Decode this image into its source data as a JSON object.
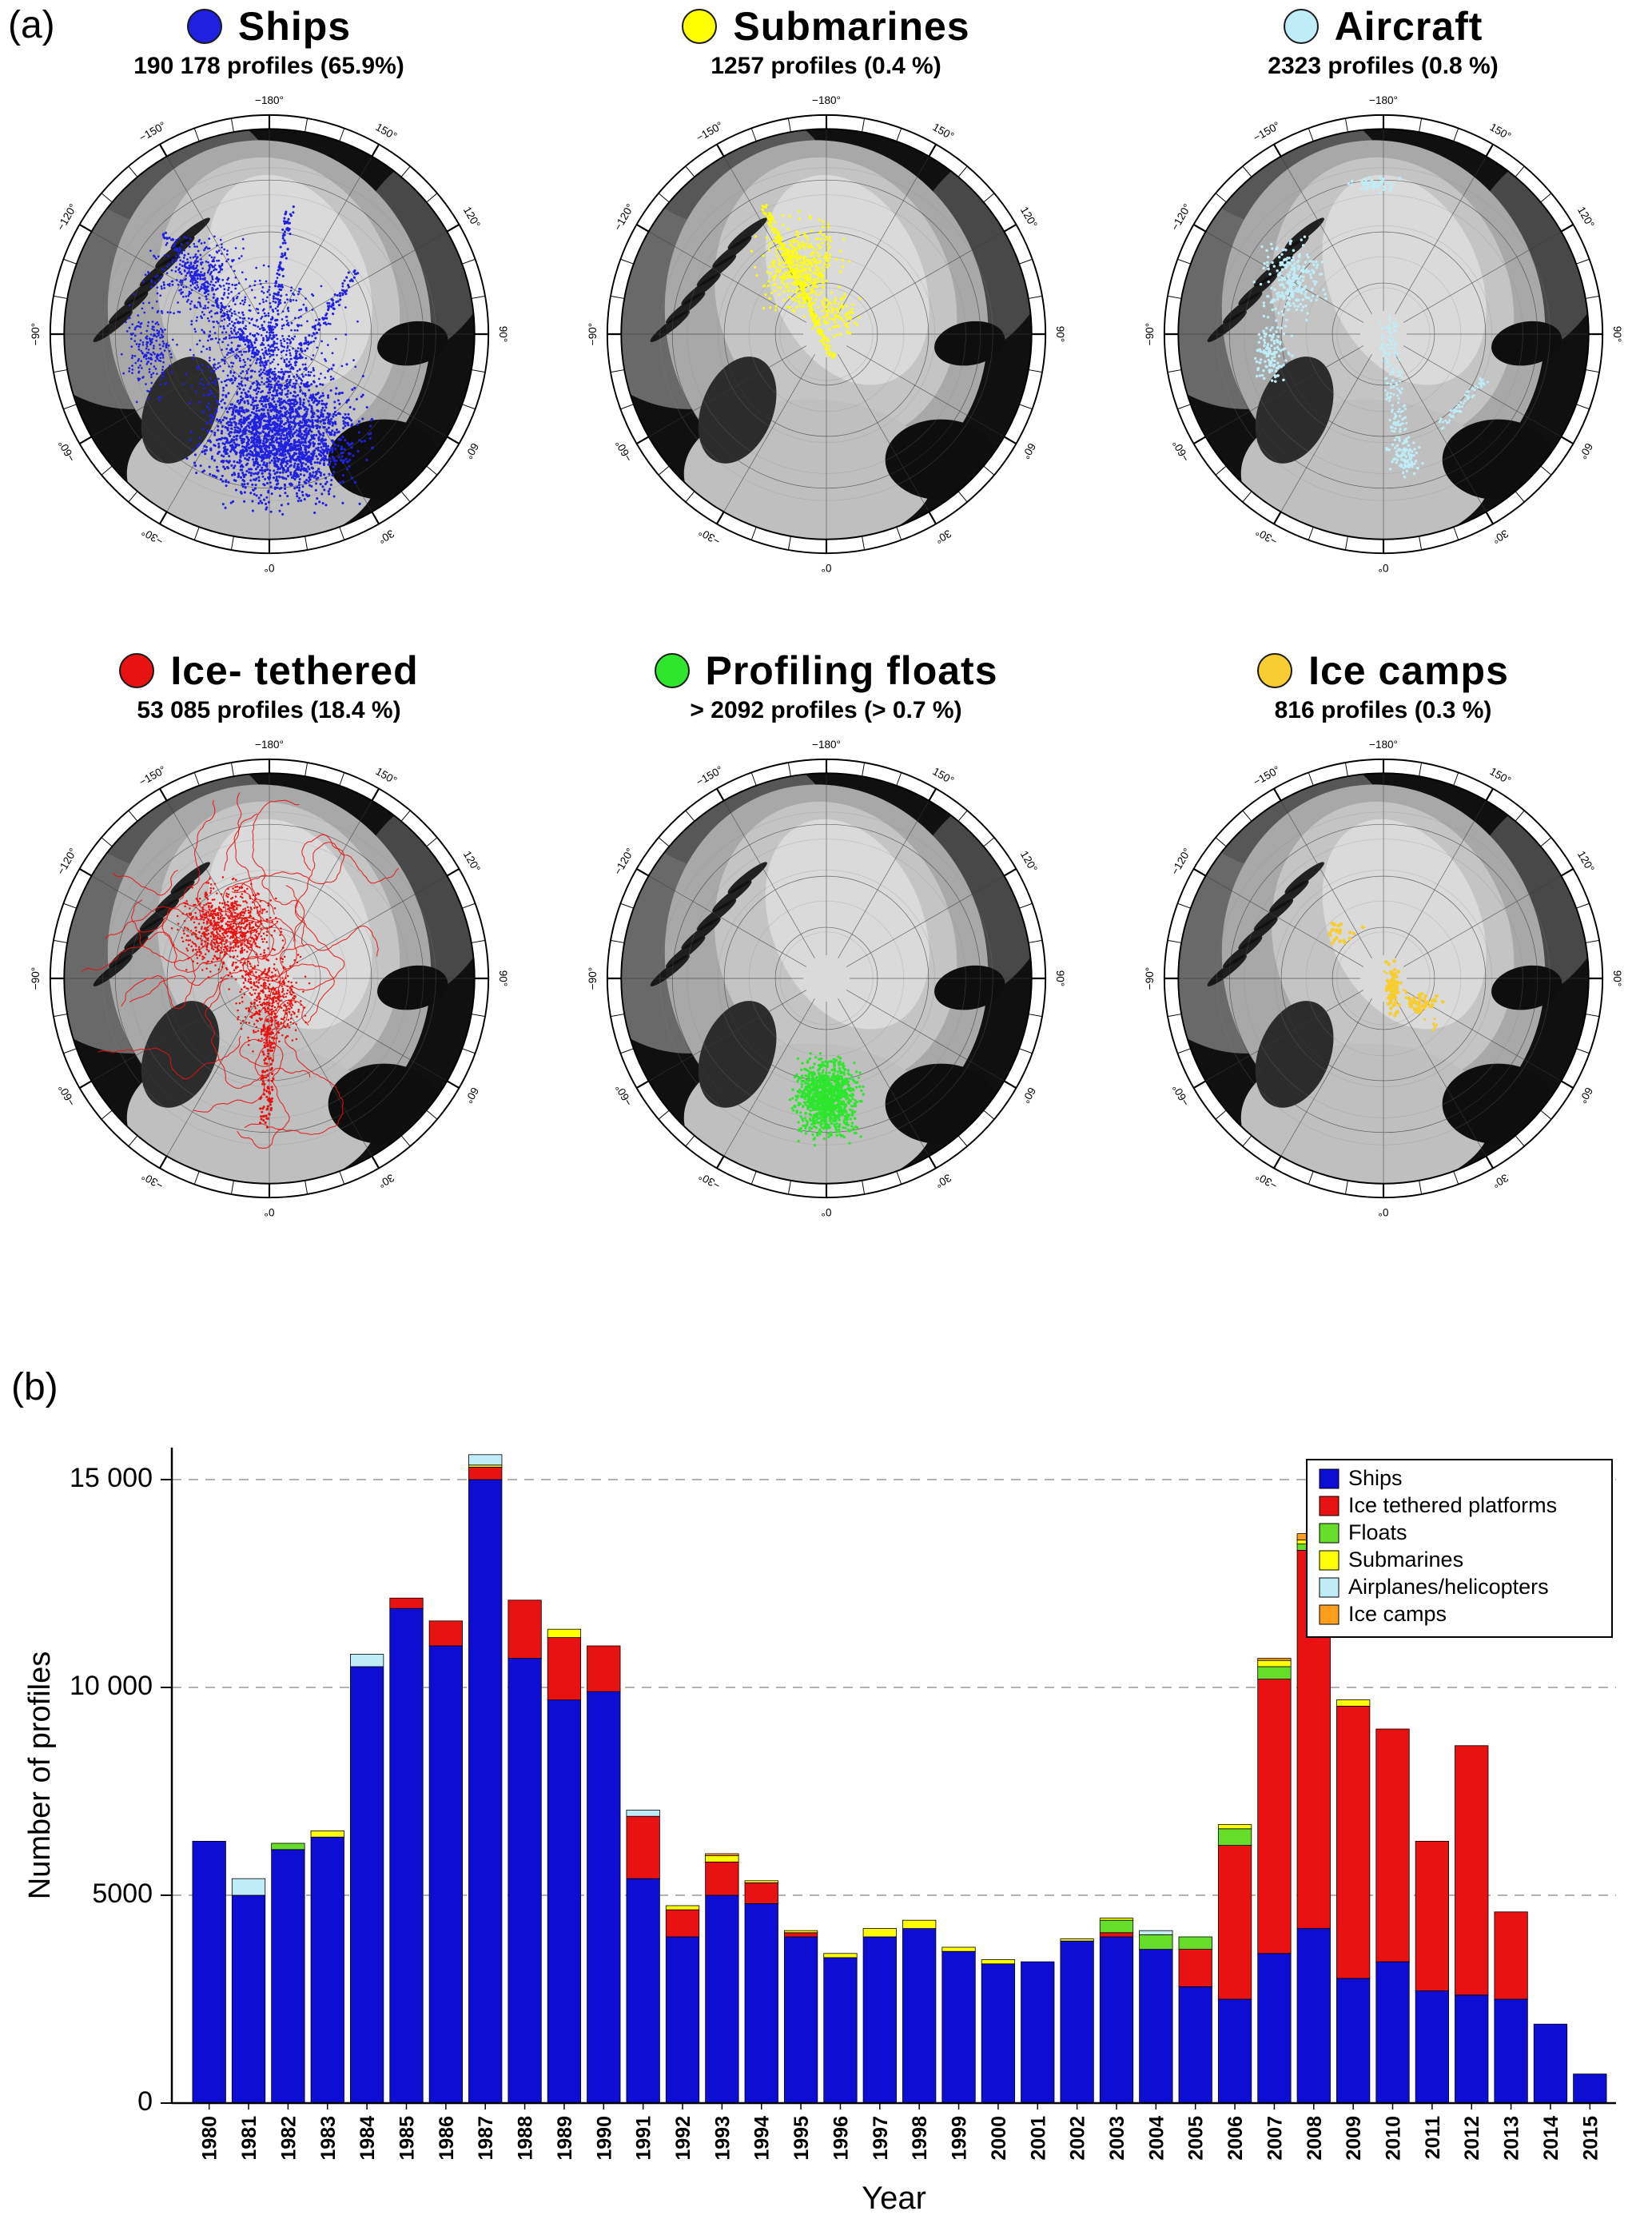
{
  "figure": {
    "panel_a_label": "(a)",
    "panel_b_label": "(b)"
  },
  "panel_a": {
    "ring_labels": [
      "−180°",
      "150°",
      "120°",
      "90°",
      "60°",
      "30°",
      "0°",
      "−30°",
      "−60°",
      "−90°",
      "−120°",
      "−150°"
    ],
    "maps": [
      {
        "id": "ships",
        "title": "Ships",
        "subtitle": "190 178 profiles (65.9%)",
        "color": "#2020e0",
        "scatter": [
          {
            "t": "b",
            "x": 0.05,
            "y": 0.5,
            "rx": 0.52,
            "ry": 0.42,
            "n": 2000,
            "s": 1.6
          },
          {
            "t": "b",
            "x": -0.05,
            "y": 0.05,
            "rx": 0.55,
            "ry": 0.45,
            "n": 700,
            "s": 1.4
          },
          {
            "t": "b",
            "x": -0.35,
            "y": -0.3,
            "rx": 0.3,
            "ry": 0.25,
            "n": 330,
            "s": 1.4
          },
          {
            "t": "b",
            "x": -0.58,
            "y": 0.08,
            "rx": 0.16,
            "ry": 0.3,
            "n": 200,
            "s": 1.4
          },
          {
            "t": "l",
            "x1": 0.0,
            "y1": 0.1,
            "x2": 0.1,
            "y2": -0.62,
            "n": 120,
            "w": 0.02
          },
          {
            "t": "l",
            "x1": 0.05,
            "y1": 0.25,
            "x2": -0.5,
            "y2": -0.48,
            "n": 150,
            "w": 0.02
          },
          {
            "t": "l",
            "x1": 0.0,
            "y1": 0.3,
            "x2": 0.42,
            "y2": -0.3,
            "n": 120,
            "w": 0.02
          }
        ]
      },
      {
        "id": "submarines",
        "title": "Submarines",
        "subtitle": "1257 profiles (0.4 %)",
        "color": "#ffff00",
        "scatter": [
          {
            "t": "b",
            "x": -0.12,
            "y": -0.32,
            "rx": 0.27,
            "ry": 0.3,
            "n": 420,
            "s": 1.6
          },
          {
            "t": "l",
            "x1": -0.3,
            "y1": -0.62,
            "x2": 0.03,
            "y2": 0.12,
            "n": 260,
            "w": 0.015
          },
          {
            "t": "b",
            "x": 0.06,
            "y": -0.08,
            "rx": 0.15,
            "ry": 0.15,
            "n": 90,
            "s": 1.6
          }
        ]
      },
      {
        "id": "aircraft",
        "title": "Aircraft",
        "subtitle": "2323 profiles (0.8 %)",
        "color": "#bfecf7",
        "scatter": [
          {
            "t": "b",
            "x": -0.45,
            "y": -0.25,
            "rx": 0.2,
            "ry": 0.28,
            "n": 260,
            "s": 1.8
          },
          {
            "t": "b",
            "x": -0.55,
            "y": 0.1,
            "rx": 0.12,
            "ry": 0.18,
            "n": 120,
            "s": 1.8
          },
          {
            "t": "l",
            "x1": 0.02,
            "y1": -0.05,
            "x2": 0.08,
            "y2": 0.5,
            "n": 160,
            "w": 0.045
          },
          {
            "t": "b",
            "x": 0.1,
            "y": 0.6,
            "rx": 0.12,
            "ry": 0.13,
            "n": 90,
            "s": 1.8
          },
          {
            "t": "b",
            "x": -0.05,
            "y": -0.73,
            "rx": 0.18,
            "ry": 0.05,
            "n": 50,
            "s": 1.8
          },
          {
            "t": "l",
            "x1": 0.28,
            "y1": 0.45,
            "x2": 0.5,
            "y2": 0.22,
            "n": 60,
            "w": 0.02
          }
        ]
      },
      {
        "id": "ice-tethered",
        "title": "Ice- tethered",
        "subtitle": "53 085 profiles (18.4 %)",
        "color": "#e81212",
        "scatter": [
          {
            "t": "w",
            "x": -0.22,
            "y": -0.26,
            "r": 0.28,
            "nw": 14,
            "st": 60,
            "sp": 0.018
          },
          {
            "t": "w",
            "x": 0.0,
            "y": 0.05,
            "r": 0.22,
            "nw": 10,
            "st": 60,
            "sp": 0.018
          },
          {
            "t": "b",
            "x": -0.2,
            "y": -0.25,
            "rx": 0.3,
            "ry": 0.28,
            "n": 800,
            "s": 1.3
          },
          {
            "t": "b",
            "x": 0.0,
            "y": 0.1,
            "rx": 0.22,
            "ry": 0.3,
            "n": 450,
            "s": 1.3
          },
          {
            "t": "l",
            "x1": 0.0,
            "y1": 0.2,
            "x2": -0.02,
            "y2": 0.72,
            "n": 120,
            "w": 0.03
          }
        ]
      },
      {
        "id": "profiling-floats",
        "title": "Profiling floats",
        "subtitle": "> 2092 profiles (> 0.7 %)",
        "color": "#2de62d",
        "scatter": [
          {
            "t": "b",
            "x": 0.0,
            "y": 0.58,
            "rx": 0.2,
            "ry": 0.25,
            "n": 1100,
            "s": 1.7
          }
        ]
      },
      {
        "id": "ice-camps",
        "title": "Ice camps",
        "subtitle": "816 profiles (0.3 %)",
        "color": "#f7cd32",
        "scatter": [
          {
            "t": "b",
            "x": 0.04,
            "y": 0.05,
            "rx": 0.05,
            "ry": 0.2,
            "n": 70,
            "s": 2.4
          },
          {
            "t": "b",
            "x": 0.2,
            "y": 0.12,
            "rx": 0.1,
            "ry": 0.05,
            "n": 40,
            "s": 2.4
          },
          {
            "t": "b",
            "x": -0.2,
            "y": -0.22,
            "rx": 0.14,
            "ry": 0.08,
            "n": 25,
            "s": 2.4
          },
          {
            "t": "l",
            "x1": 0.0,
            "y1": -0.05,
            "x2": 0.26,
            "y2": 0.25,
            "n": 35,
            "w": 0.02
          }
        ]
      }
    ]
  },
  "panel_b": {
    "ylabel": "Number of profiles",
    "xlabel": "Year",
    "ytick_labels": [
      "0",
      "5000",
      "10 000",
      "15 000"
    ],
    "ytick_values": [
      0,
      5000,
      10000,
      15000
    ]
  },
  "chart_data": {
    "type": "bar",
    "stacked": true,
    "title": "",
    "xlabel": "Year",
    "ylabel": "Number of profiles",
    "ylim": [
      0,
      16000
    ],
    "grid": "horizontal dashed at 5000, 10000, 15000",
    "legend_position": "top-right",
    "categories": [
      "1980",
      "1981",
      "1982",
      "1983",
      "1984",
      "1985",
      "1986",
      "1987",
      "1988",
      "1989",
      "1990",
      "1991",
      "1992",
      "1993",
      "1994",
      "1995",
      "1996",
      "1997",
      "1998",
      "1999",
      "2000",
      "2001",
      "2002",
      "2003",
      "2004",
      "2005",
      "2006",
      "2007",
      "2008",
      "2009",
      "2010",
      "2011",
      "2012",
      "2013",
      "2014",
      "2015"
    ],
    "series": [
      {
        "name": "Ships",
        "color": "#0d0dd4",
        "values": [
          6300,
          5000,
          6100,
          6400,
          10500,
          11900,
          11000,
          15000,
          10700,
          9700,
          9900,
          5400,
          4000,
          5000,
          4800,
          4000,
          3500,
          4000,
          4200,
          3650,
          3350,
          3400,
          3900,
          4000,
          3700,
          2800,
          2500,
          3600,
          4200,
          3000,
          3400,
          2700,
          2600,
          2500,
          1900,
          700
        ]
      },
      {
        "name": "Ice tethered platforms",
        "color": "#e81212",
        "values": [
          0,
          0,
          0,
          0,
          0,
          250,
          600,
          300,
          1400,
          1500,
          1100,
          1500,
          650,
          800,
          500,
          100,
          0,
          0,
          0,
          0,
          0,
          0,
          0,
          100,
          0,
          900,
          3700,
          6600,
          9100,
          6550,
          5600,
          3600,
          6000,
          2100,
          0,
          0
        ]
      },
      {
        "name": "Floats",
        "color": "#66dd28",
        "values": [
          0,
          0,
          150,
          0,
          0,
          0,
          0,
          0,
          0,
          0,
          0,
          0,
          0,
          0,
          0,
          0,
          0,
          0,
          0,
          0,
          0,
          0,
          0,
          300,
          350,
          300,
          400,
          300,
          150,
          0,
          0,
          0,
          0,
          0,
          0,
          0
        ]
      },
      {
        "name": "Submarines",
        "color": "#ffff00",
        "values": [
          0,
          0,
          0,
          150,
          0,
          0,
          0,
          50,
          0,
          200,
          0,
          0,
          100,
          150,
          50,
          50,
          100,
          200,
          200,
          100,
          100,
          0,
          50,
          50,
          0,
          0,
          100,
          150,
          100,
          150,
          0,
          0,
          0,
          0,
          0,
          0
        ]
      },
      {
        "name": "Airplanes/helicopters",
        "color": "#bfecf7",
        "values": [
          0,
          400,
          0,
          0,
          300,
          0,
          0,
          250,
          0,
          0,
          0,
          150,
          0,
          0,
          0,
          0,
          0,
          0,
          0,
          0,
          0,
          0,
          0,
          0,
          100,
          0,
          0,
          0,
          0,
          0,
          0,
          0,
          0,
          0,
          0,
          0
        ]
      },
      {
        "name": "Ice camps",
        "color": "#ff9d1c",
        "values": [
          0,
          0,
          0,
          0,
          0,
          0,
          0,
          0,
          0,
          0,
          0,
          0,
          0,
          50,
          0,
          0,
          0,
          0,
          0,
          0,
          0,
          0,
          0,
          0,
          0,
          0,
          0,
          50,
          150,
          0,
          0,
          0,
          0,
          0,
          0,
          0
        ]
      }
    ]
  }
}
